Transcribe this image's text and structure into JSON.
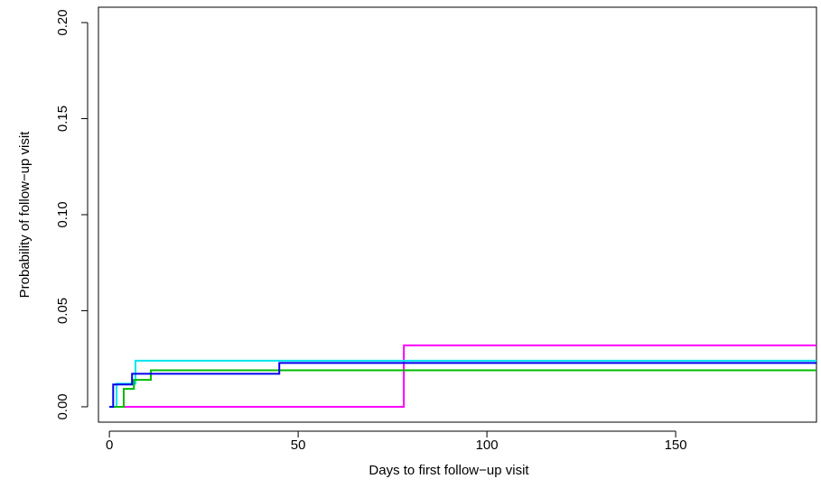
{
  "chart_data": {
    "type": "step",
    "x_label": "Days to first follow−up visit",
    "y_label": "Probability of follow−up visit",
    "xlim": [
      -2.9,
      187.3
    ],
    "xticks": [
      0,
      50,
      100,
      150
    ],
    "ylim": [
      -0.008,
      0.208
    ],
    "yticks": [
      {
        "value": 0,
        "label": "0.00"
      },
      {
        "value": 0.05,
        "label": "0.05"
      },
      {
        "value": 0.1,
        "label": "0.10"
      },
      {
        "value": 0.15,
        "label": "0.15"
      },
      {
        "value": 0.2,
        "label": "0.20"
      }
    ],
    "series": [
      {
        "color": "#ff00ff",
        "x": [
          0,
          78,
          187.3
        ],
        "values": [
          0,
          0.032,
          0.032
        ]
      },
      {
        "color": "#00e5ee",
        "x": [
          0,
          1.9,
          6.9,
          187.3
        ],
        "values": [
          0,
          0.012,
          0.024,
          0.024
        ]
      },
      {
        "color": "#00bb00",
        "x": [
          0,
          3.8,
          6.5,
          11,
          187.3
        ],
        "values": [
          0,
          0.0093,
          0.014,
          0.019,
          0.019
        ]
      },
      {
        "color": "#0000ee",
        "x": [
          0,
          1,
          6,
          45,
          187.3
        ],
        "values": [
          0,
          0.0116,
          0.0172,
          0.0228,
          0.0228
        ]
      }
    ]
  }
}
